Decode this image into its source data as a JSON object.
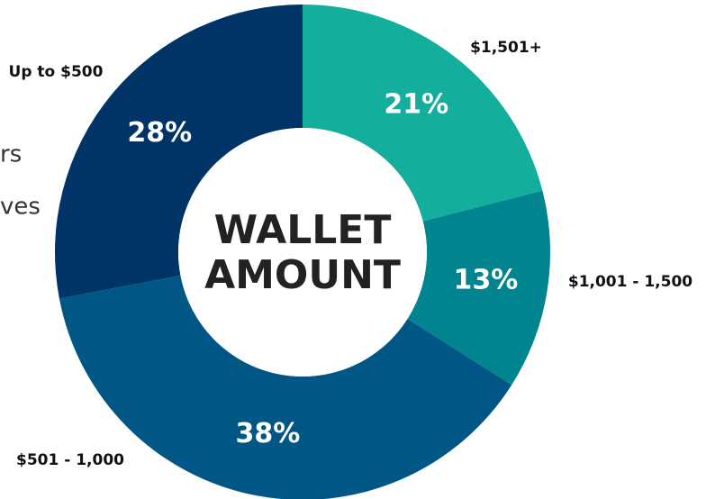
{
  "chart_data": {
    "type": "donut",
    "center_label": [
      "WALLET",
      "AMOUNT"
    ],
    "categories": [
      "$1,501+",
      "$1,001 - 1,500",
      "$501 - 1,000",
      "Up to $500"
    ],
    "values": [
      21,
      13,
      38,
      28
    ],
    "value_labels": [
      "21%",
      "13%",
      "38%",
      "28%"
    ],
    "colors": [
      "#14ae9c",
      "#00848f",
      "#005684",
      "#003366"
    ],
    "side_text": [
      "rs",
      "ves"
    ]
  }
}
